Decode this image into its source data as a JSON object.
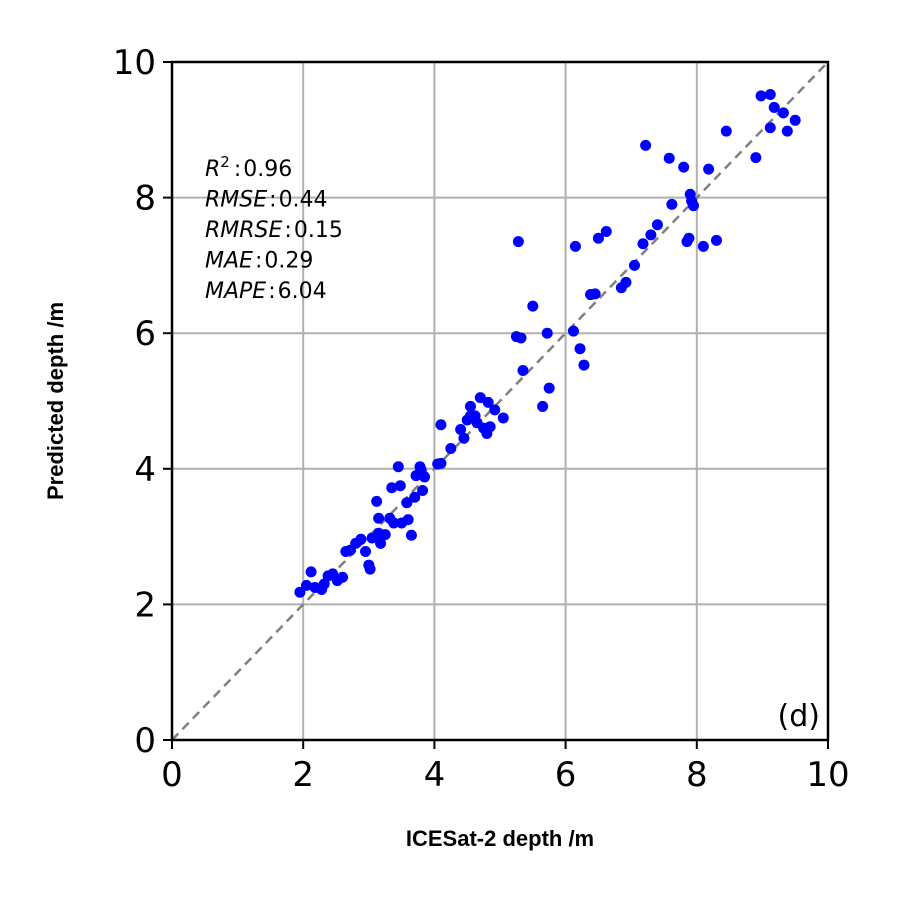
{
  "chart_data": {
    "type": "scatter",
    "xlabel": "ICESat-2 depth /m",
    "ylabel": "Predicted depth /m",
    "xlim": [
      0,
      10
    ],
    "ylim": [
      0,
      10
    ],
    "xticks": [
      "0",
      "2",
      "4",
      "6",
      "8",
      "10"
    ],
    "yticks": [
      "0",
      "2",
      "4",
      "6",
      "8",
      "10"
    ],
    "grid": true,
    "reference_line": "y = x (dashed gray)",
    "panel_label": "(d)",
    "point_color": "#0000ff",
    "stats": [
      {
        "name": "R",
        "sup": "2",
        "value": "0.96"
      },
      {
        "name": "RMSE",
        "value": "0.44"
      },
      {
        "name": "RMRSE",
        "value": "0.15"
      },
      {
        "name": "MAE",
        "value": "0.29"
      },
      {
        "name": "MAPE",
        "value": "6.04"
      }
    ],
    "points": [
      [
        1.95,
        2.18
      ],
      [
        2.05,
        2.28
      ],
      [
        2.12,
        2.48
      ],
      [
        2.18,
        2.25
      ],
      [
        2.28,
        2.22
      ],
      [
        2.32,
        2.3
      ],
      [
        2.38,
        2.42
      ],
      [
        2.45,
        2.45
      ],
      [
        2.52,
        2.35
      ],
      [
        2.6,
        2.4
      ],
      [
        2.65,
        2.78
      ],
      [
        2.72,
        2.8
      ],
      [
        2.8,
        2.9
      ],
      [
        2.88,
        2.96
      ],
      [
        2.95,
        2.78
      ],
      [
        3.0,
        2.58
      ],
      [
        3.02,
        2.52
      ],
      [
        3.05,
        2.98
      ],
      [
        3.12,
        3.52
      ],
      [
        3.15,
        3.05
      ],
      [
        3.15,
        3.27
      ],
      [
        3.18,
        2.9
      ],
      [
        3.25,
        3.03
      ],
      [
        3.32,
        3.27
      ],
      [
        3.35,
        3.72
      ],
      [
        3.38,
        3.2
      ],
      [
        3.45,
        4.03
      ],
      [
        3.48,
        3.75
      ],
      [
        3.5,
        3.2
      ],
      [
        3.58,
        3.5
      ],
      [
        3.6,
        3.25
      ],
      [
        3.65,
        3.02
      ],
      [
        3.7,
        3.58
      ],
      [
        3.72,
        3.9
      ],
      [
        3.78,
        4.03
      ],
      [
        3.8,
        3.98
      ],
      [
        3.82,
        3.68
      ],
      [
        3.85,
        3.88
      ],
      [
        4.05,
        4.07
      ],
      [
        4.1,
        4.08
      ],
      [
        4.1,
        4.65
      ],
      [
        4.25,
        4.3
      ],
      [
        4.4,
        4.58
      ],
      [
        4.45,
        4.45
      ],
      [
        4.5,
        4.72
      ],
      [
        4.55,
        4.78
      ],
      [
        4.55,
        4.92
      ],
      [
        4.62,
        4.78
      ],
      [
        4.65,
        4.68
      ],
      [
        4.7,
        5.05
      ],
      [
        4.75,
        4.6
      ],
      [
        4.8,
        4.52
      ],
      [
        4.82,
        4.98
      ],
      [
        4.85,
        4.62
      ],
      [
        4.92,
        4.87
      ],
      [
        5.05,
        4.75
      ],
      [
        5.25,
        5.95
      ],
      [
        5.28,
        7.35
      ],
      [
        5.32,
        5.93
      ],
      [
        5.35,
        5.45
      ],
      [
        5.5,
        6.4
      ],
      [
        5.65,
        4.92
      ],
      [
        5.72,
        6.0
      ],
      [
        5.75,
        5.19
      ],
      [
        6.12,
        6.03
      ],
      [
        6.15,
        7.28
      ],
      [
        6.22,
        5.77
      ],
      [
        6.28,
        5.53
      ],
      [
        6.38,
        6.57
      ],
      [
        6.45,
        6.58
      ],
      [
        6.5,
        7.4
      ],
      [
        6.62,
        7.5
      ],
      [
        6.85,
        6.67
      ],
      [
        6.92,
        6.75
      ],
      [
        7.05,
        7.0
      ],
      [
        7.18,
        7.32
      ],
      [
        7.22,
        8.77
      ],
      [
        7.3,
        7.45
      ],
      [
        7.4,
        7.6
      ],
      [
        7.58,
        8.58
      ],
      [
        7.62,
        7.9
      ],
      [
        7.8,
        8.45
      ],
      [
        7.85,
        7.35
      ],
      [
        7.88,
        7.4
      ],
      [
        7.9,
        8.05
      ],
      [
        7.92,
        7.95
      ],
      [
        7.95,
        7.88
      ],
      [
        8.1,
        7.28
      ],
      [
        8.18,
        8.42
      ],
      [
        8.3,
        7.37
      ],
      [
        8.45,
        8.98
      ],
      [
        8.9,
        8.59
      ],
      [
        8.98,
        9.5
      ],
      [
        9.12,
        9.52
      ],
      [
        9.12,
        9.03
      ],
      [
        9.18,
        9.33
      ],
      [
        9.32,
        9.25
      ],
      [
        9.38,
        8.98
      ],
      [
        9.5,
        9.14
      ]
    ]
  }
}
